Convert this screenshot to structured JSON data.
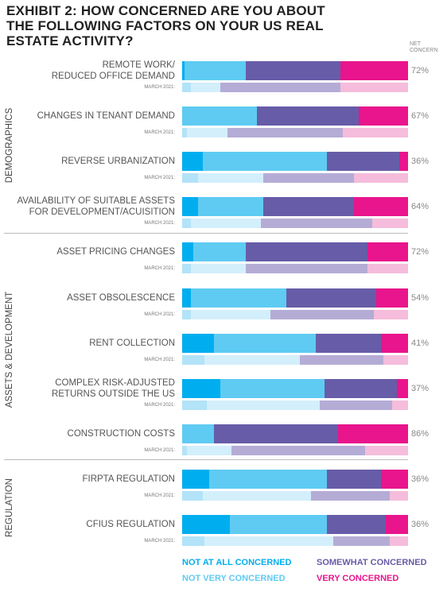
{
  "chart_data": {
    "type": "stacked-bar",
    "title": "EXHIBIT 2: HOW CONCERNED ARE YOU ABOUT THE FOLLOWING FACTORS ON YOUR US REAL ESTATE ACTIVITY?",
    "net_concern_title": "NET\nCONCERN",
    "comparison_label": "MARCH 2021:",
    "xlim": [
      0,
      100
    ],
    "categories": [
      "REMOTE WORK/\nREDUCED OFFICE DEMAND",
      "CHANGES IN TENANT DEMAND",
      "REVERSE URBANIZATION",
      "AVAILABILITY OF SUITABLE ASSETS\nFOR DEVELOPMENT/ACUISITION",
      "ASSET PRICING CHANGES",
      "ASSET OBSOLESCENCE",
      "RENT COLLECTION",
      "COMPLEX RISK-ADJUSTED\nRETURNS OUTSIDE THE US",
      "CONSTRUCTION COSTS",
      "FIRPTA REGULATION",
      "CFIUS REGULATION"
    ],
    "groups": [
      "DEMOGRAPHICS",
      "DEMOGRAPHICS",
      "DEMOGRAPHICS",
      "DEMOGRAPHICS",
      "ASSETS & DEVELOPMENT",
      "ASSETS & DEVELOPMENT",
      "ASSETS & DEVELOPMENT",
      "ASSETS & DEVELOPMENT",
      "ASSETS & DEVELOPMENT",
      "REGULATION",
      "REGULATION"
    ],
    "series": [
      {
        "name": "NOT AT ALL CONCERNED",
        "color": "#00aeef",
        "march_color": "#b3e3f8",
        "values": [
          1,
          0,
          9,
          7,
          5,
          4,
          14,
          17,
          0,
          12,
          21
        ],
        "march_2021_values": [
          4,
          2,
          7,
          4,
          4,
          4,
          10,
          11,
          2,
          9,
          10
        ]
      },
      {
        "name": "NOT VERY CONCERNED",
        "color": "#5fcbf2",
        "march_color": "#d3effb",
        "values": [
          27,
          33,
          55,
          29,
          23,
          42,
          45,
          46,
          14,
          52,
          43
        ],
        "march_2021_values": [
          13,
          18,
          29,
          31,
          24,
          35,
          42,
          50,
          20,
          48,
          57
        ]
      },
      {
        "name": "SOMEWHAT CONCERNED",
        "color": "#675ca8",
        "march_color": "#b5acd6",
        "values": [
          42,
          45,
          32,
          40,
          54,
          40,
          29,
          32,
          55,
          24,
          26
        ],
        "march_2021_values": [
          53,
          51,
          40,
          49,
          54,
          46,
          37,
          32,
          59,
          35,
          25
        ]
      },
      {
        "name": "VERY CONCERNED",
        "color": "#e8158c",
        "march_color": "#f5bcdb",
        "values": [
          30,
          22,
          4,
          24,
          18,
          14,
          12,
          5,
          31,
          12,
          10
        ],
        "march_2021_values": [
          30,
          29,
          24,
          16,
          18,
          15,
          11,
          7,
          19,
          8,
          8
        ]
      }
    ],
    "net_concern": [
      72,
      67,
      36,
      64,
      72,
      54,
      41,
      37,
      86,
      36,
      36
    ],
    "net_concern_labels": [
      "72%",
      "67%",
      "36%",
      "64%",
      "72%",
      "54%",
      "41%",
      "37%",
      "86%",
      "36%",
      "36%"
    ]
  }
}
